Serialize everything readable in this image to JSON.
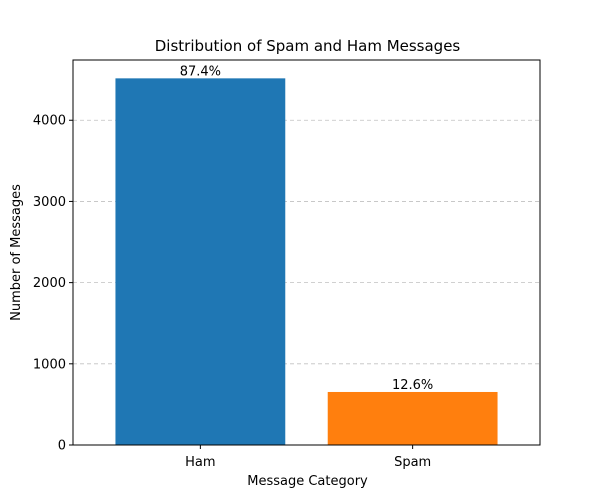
{
  "chart_data": {
    "type": "bar",
    "title": "Distribution of Spam and Ham Messages",
    "xlabel": "Message Category",
    "ylabel": "Number of Messages",
    "categories": [
      "Ham",
      "Spam"
    ],
    "values": [
      4516,
      653
    ],
    "data_labels": [
      "87.4%",
      "12.6%"
    ],
    "colors": [
      "#1f77b4",
      "#ff7f0e"
    ],
    "ylim": [
      0,
      4742
    ],
    "yticks": [
      0,
      1000,
      2000,
      3000,
      4000
    ],
    "grid": "y-dashed",
    "legend": "none"
  }
}
